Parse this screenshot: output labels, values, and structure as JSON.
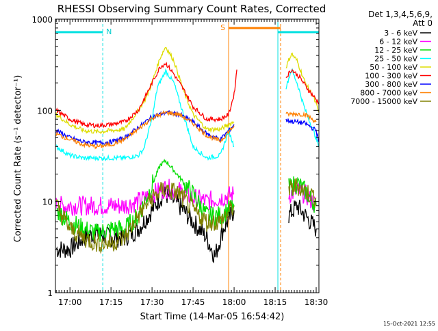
{
  "chart_data": {
    "type": "line",
    "title": "RHESSI Observing Summary Count Rates, Corrected",
    "xlabel": "Start Time (14-Mar-05 16:54:42)",
    "ylabel": "Corrected Count Rate (s⁻¹ detector⁻¹)",
    "x_range": [
      "16:54:42",
      "18:31:00"
    ],
    "y_scale": "log",
    "ylim": [
      1,
      1000
    ],
    "x_ticks": [
      "17:00",
      "17:15",
      "17:30",
      "17:45",
      "18:00",
      "18:15",
      "18:30"
    ],
    "y_ticks": [
      "1",
      "10",
      "100",
      "1000"
    ],
    "legend_header": [
      "Det 1,3,4,5,6,9,",
      "Att 0"
    ],
    "legend_position": "right",
    "footer": "15-Oct-2021 12:55",
    "series": [
      {
        "name": "3 - 6 keV",
        "color": "#000000",
        "points": [
          [
            "16:55",
            3
          ],
          [
            "17:00",
            3
          ],
          [
            "17:05",
            4
          ],
          [
            "17:10",
            4.5
          ],
          [
            "17:15",
            4
          ],
          [
            "17:20",
            4
          ],
          [
            "17:25",
            5
          ],
          [
            "17:30",
            8
          ],
          [
            "17:33",
            11
          ],
          [
            "17:35",
            12
          ],
          [
            "17:40",
            9
          ],
          [
            "17:45",
            6
          ],
          [
            "17:50",
            4
          ],
          [
            "17:53",
            2.5
          ],
          [
            "17:56",
            5
          ],
          [
            "18:00",
            8
          ],
          [
            "18:20",
            7
          ],
          [
            "18:23",
            9
          ],
          [
            "18:26",
            7
          ],
          [
            "18:30",
            5
          ]
        ]
      },
      {
        "name": "6 - 12 keV",
        "color": "#ff00ff",
        "points": [
          [
            "16:55",
            9
          ],
          [
            "17:00",
            9
          ],
          [
            "17:05",
            9
          ],
          [
            "17:10",
            9
          ],
          [
            "17:15",
            9
          ],
          [
            "17:20",
            9
          ],
          [
            "17:25",
            10
          ],
          [
            "17:30",
            12
          ],
          [
            "17:35",
            14
          ],
          [
            "17:40",
            13
          ],
          [
            "17:45",
            11
          ],
          [
            "17:50",
            10
          ],
          [
            "17:55",
            11
          ],
          [
            "18:00",
            12
          ],
          [
            "18:20",
            12
          ],
          [
            "18:23",
            13
          ],
          [
            "18:26",
            12
          ],
          [
            "18:30",
            9
          ]
        ]
      },
      {
        "name": "12 - 25 keV",
        "color": "#00dd00",
        "points": [
          [
            "16:55",
            8
          ],
          [
            "17:00",
            6
          ],
          [
            "17:05",
            5
          ],
          [
            "17:10",
            4.5
          ],
          [
            "17:15",
            5
          ],
          [
            "17:20",
            5
          ],
          [
            "17:25",
            7
          ],
          [
            "17:30",
            15
          ],
          [
            "17:33",
            25
          ],
          [
            "17:35",
            28
          ],
          [
            "17:38",
            22
          ],
          [
            "17:45",
            12
          ],
          [
            "17:50",
            7
          ],
          [
            "17:55",
            7
          ],
          [
            "18:00",
            9
          ],
          [
            "18:20",
            14
          ],
          [
            "18:23",
            16
          ],
          [
            "18:26",
            13
          ],
          [
            "18:30",
            9
          ]
        ]
      },
      {
        "name": "25 - 50 keV",
        "color": "#00ffff",
        "points": [
          [
            "16:55",
            40
          ],
          [
            "17:00",
            32
          ],
          [
            "17:05",
            30
          ],
          [
            "17:10",
            30
          ],
          [
            "17:15",
            30
          ],
          [
            "17:20",
            30
          ],
          [
            "17:25",
            32
          ],
          [
            "17:27",
            38
          ],
          [
            "17:30",
            80
          ],
          [
            "17:32",
            180
          ],
          [
            "17:35",
            270
          ],
          [
            "17:38",
            200
          ],
          [
            "17:42",
            80
          ],
          [
            "17:45",
            40
          ],
          [
            "17:50",
            30
          ],
          [
            "17:55",
            32
          ],
          [
            "17:58",
            60
          ],
          [
            "18:00",
            40
          ],
          [
            "18:19",
            180
          ],
          [
            "18:21",
            280
          ],
          [
            "18:23",
            200
          ],
          [
            "18:26",
            100
          ],
          [
            "18:29",
            60
          ],
          [
            "18:31",
            40
          ]
        ]
      },
      {
        "name": "50 - 100 keV",
        "color": "#dddd00",
        "points": [
          [
            "16:55",
            90
          ],
          [
            "17:00",
            70
          ],
          [
            "17:05",
            60
          ],
          [
            "17:10",
            58
          ],
          [
            "17:15",
            60
          ],
          [
            "17:20",
            62
          ],
          [
            "17:25",
            100
          ],
          [
            "17:28",
            140
          ],
          [
            "17:30",
            200
          ],
          [
            "17:33",
            380
          ],
          [
            "17:35",
            500
          ],
          [
            "17:38",
            350
          ],
          [
            "17:42",
            150
          ],
          [
            "17:45",
            90
          ],
          [
            "17:50",
            62
          ],
          [
            "17:55",
            62
          ],
          [
            "17:58",
            70
          ],
          [
            "18:00",
            75
          ],
          [
            "18:19",
            300
          ],
          [
            "18:21",
            420
          ],
          [
            "18:23",
            350
          ],
          [
            "18:26",
            200
          ],
          [
            "18:29",
            140
          ],
          [
            "18:31",
            95
          ]
        ]
      },
      {
        "name": "100 - 300 keV",
        "color": "#ff0000",
        "points": [
          [
            "16:55",
            100
          ],
          [
            "17:00",
            80
          ],
          [
            "17:05",
            70
          ],
          [
            "17:10",
            68
          ],
          [
            "17:15",
            70
          ],
          [
            "17:20",
            75
          ],
          [
            "17:25",
            100
          ],
          [
            "17:28",
            150
          ],
          [
            "17:30",
            200
          ],
          [
            "17:33",
            300
          ],
          [
            "17:35",
            330
          ],
          [
            "17:38",
            250
          ],
          [
            "17:42",
            160
          ],
          [
            "17:45",
            110
          ],
          [
            "17:50",
            80
          ],
          [
            "17:55",
            80
          ],
          [
            "17:58",
            90
          ],
          [
            "18:00",
            150
          ],
          [
            "18:01",
            280
          ],
          [
            "18:19",
            230
          ],
          [
            "18:21",
            280
          ],
          [
            "18:24",
            230
          ],
          [
            "18:27",
            170
          ],
          [
            "18:31",
            120
          ]
        ]
      },
      {
        "name": "300 - 800 keV",
        "color": "#0000ff",
        "points": [
          [
            "16:55",
            60
          ],
          [
            "17:00",
            50
          ],
          [
            "17:05",
            45
          ],
          [
            "17:10",
            44
          ],
          [
            "17:15",
            45
          ],
          [
            "17:20",
            50
          ],
          [
            "17:25",
            65
          ],
          [
            "17:30",
            85
          ],
          [
            "17:35",
            95
          ],
          [
            "17:40",
            90
          ],
          [
            "17:45",
            75
          ],
          [
            "17:50",
            55
          ],
          [
            "17:55",
            48
          ],
          [
            "17:58",
            60
          ],
          [
            "18:00",
            70
          ],
          [
            "18:19",
            78
          ],
          [
            "18:22",
            75
          ],
          [
            "18:26",
            72
          ],
          [
            "18:30",
            60
          ],
          [
            "18:31",
            45
          ]
        ]
      },
      {
        "name": "800 - 7000 keV",
        "color": "#ff8000",
        "points": [
          [
            "16:55",
            55
          ],
          [
            "17:00",
            48
          ],
          [
            "17:05",
            42
          ],
          [
            "17:10",
            40
          ],
          [
            "17:15",
            42
          ],
          [
            "17:20",
            48
          ],
          [
            "17:25",
            62
          ],
          [
            "17:30",
            82
          ],
          [
            "17:35",
            95
          ],
          [
            "17:40",
            90
          ],
          [
            "17:45",
            72
          ],
          [
            "17:50",
            53
          ],
          [
            "17:55",
            46
          ],
          [
            "17:58",
            58
          ],
          [
            "18:00",
            68
          ],
          [
            "18:19",
            90
          ],
          [
            "18:22",
            92
          ],
          [
            "18:26",
            90
          ],
          [
            "18:30",
            75
          ]
        ]
      },
      {
        "name": "7000 - 15000 keV",
        "color": "#808000",
        "points": [
          [
            "16:55",
            9
          ],
          [
            "17:00",
            5
          ],
          [
            "17:05",
            4
          ],
          [
            "17:10",
            3.5
          ],
          [
            "17:15",
            3.5
          ],
          [
            "17:20",
            4
          ],
          [
            "17:25",
            7
          ],
          [
            "17:30",
            11
          ],
          [
            "17:35",
            14
          ],
          [
            "17:40",
            12
          ],
          [
            "17:45",
            8
          ],
          [
            "17:50",
            6
          ],
          [
            "17:55",
            6
          ],
          [
            "18:00",
            9
          ],
          [
            "18:20",
            13
          ],
          [
            "18:23",
            15
          ],
          [
            "18:26",
            13
          ],
          [
            "18:30",
            11
          ]
        ]
      }
    ],
    "markers": {
      "N_label": "N",
      "S_label": "S",
      "night_intervals": [
        [
          "16:54:42",
          "17:12"
        ],
        [
          "18:16",
          "18:31"
        ]
      ],
      "saa_interval": [
        "17:58",
        "18:17"
      ],
      "night_boundaries": [
        "16:54:42",
        "17:12",
        "18:16",
        "18:31"
      ],
      "saa_boundaries": [
        "17:58",
        "18:17"
      ],
      "data_gap": [
        "18:01",
        "18:19"
      ]
    }
  }
}
